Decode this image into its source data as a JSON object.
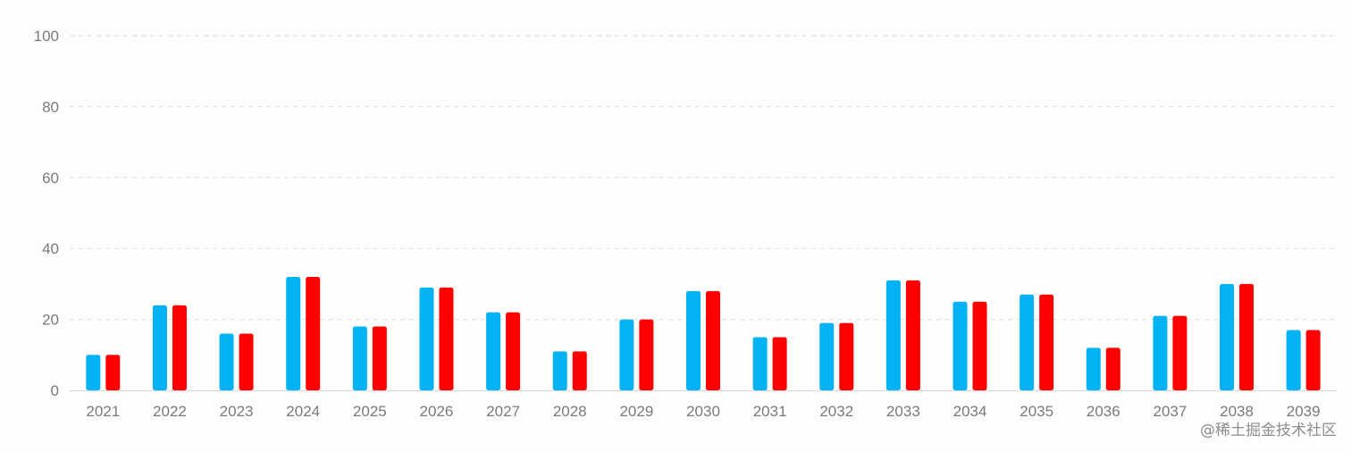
{
  "chart_data": {
    "type": "bar",
    "categories": [
      "2021",
      "2022",
      "2023",
      "2024",
      "2025",
      "2026",
      "2027",
      "2028",
      "2029",
      "2030",
      "2031",
      "2032",
      "2033",
      "2034",
      "2035",
      "2036",
      "2037",
      "2038",
      "2039"
    ],
    "series": [
      {
        "values": [
          10,
          24,
          16,
          32,
          18,
          29,
          22,
          11,
          20,
          28,
          15,
          19,
          31,
          25,
          27,
          12,
          21,
          30,
          17
        ],
        "color": "#03b2f3"
      },
      {
        "values": [
          10,
          24,
          16,
          32,
          18,
          29,
          22,
          11,
          20,
          28,
          15,
          19,
          31,
          25,
          27,
          12,
          21,
          30,
          17
        ],
        "color": "#ff0000"
      }
    ],
    "ylim": [
      0,
      100
    ],
    "yticks": [
      0,
      20,
      40,
      60,
      80,
      100
    ],
    "grid": true,
    "grid_style": "dashed",
    "axis_color": "#d6d8dc",
    "grid_color": "#dcdde0"
  },
  "watermark": "@稀土掘金技术社区"
}
